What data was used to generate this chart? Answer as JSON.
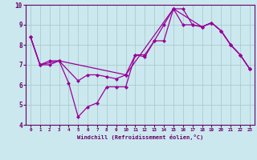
{
  "xlabel": "Windchill (Refroidissement éolien,°C)",
  "bg_color": "#cce8ef",
  "plot_bg_color": "#cce8ef",
  "line_color": "#990099",
  "grid_color": "#aacccc",
  "axis_color": "#660066",
  "xlim": [
    -0.5,
    23.5
  ],
  "ylim": [
    4,
    10
  ],
  "xticks": [
    0,
    1,
    2,
    3,
    4,
    5,
    6,
    7,
    8,
    9,
    10,
    11,
    12,
    13,
    14,
    15,
    16,
    17,
    18,
    19,
    20,
    21,
    22,
    23
  ],
  "yticks": [
    4,
    5,
    6,
    7,
    8,
    9,
    10
  ],
  "line1_x": [
    0,
    1,
    2,
    3,
    4,
    5,
    6,
    7,
    8,
    9,
    10,
    11,
    12,
    13,
    14,
    15,
    16,
    17,
    18,
    19,
    20,
    21,
    22,
    23
  ],
  "line1_y": [
    8.4,
    7.0,
    7.0,
    7.2,
    6.1,
    4.4,
    4.9,
    5.1,
    5.9,
    5.9,
    5.9,
    7.5,
    7.4,
    8.2,
    9.0,
    9.8,
    9.8,
    9.0,
    8.9,
    9.1,
    8.7,
    8.0,
    7.5,
    6.8
  ],
  "line2_x": [
    0,
    1,
    2,
    3,
    5,
    6,
    7,
    8,
    9,
    10,
    11,
    12,
    13,
    14,
    15,
    16,
    17,
    18,
    19,
    20,
    21,
    22,
    23
  ],
  "line2_y": [
    8.4,
    7.0,
    7.2,
    7.2,
    6.2,
    6.5,
    6.5,
    6.4,
    6.3,
    6.5,
    7.5,
    7.5,
    8.2,
    8.2,
    9.8,
    9.0,
    9.0,
    8.9,
    9.1,
    8.7,
    8.0,
    7.5,
    6.8
  ],
  "line3_x": [
    0,
    1,
    3,
    10,
    15,
    18,
    19,
    20,
    21,
    22,
    23
  ],
  "line3_y": [
    8.4,
    7.0,
    7.2,
    6.5,
    9.8,
    8.9,
    9.1,
    8.7,
    8.0,
    7.5,
    6.8
  ]
}
